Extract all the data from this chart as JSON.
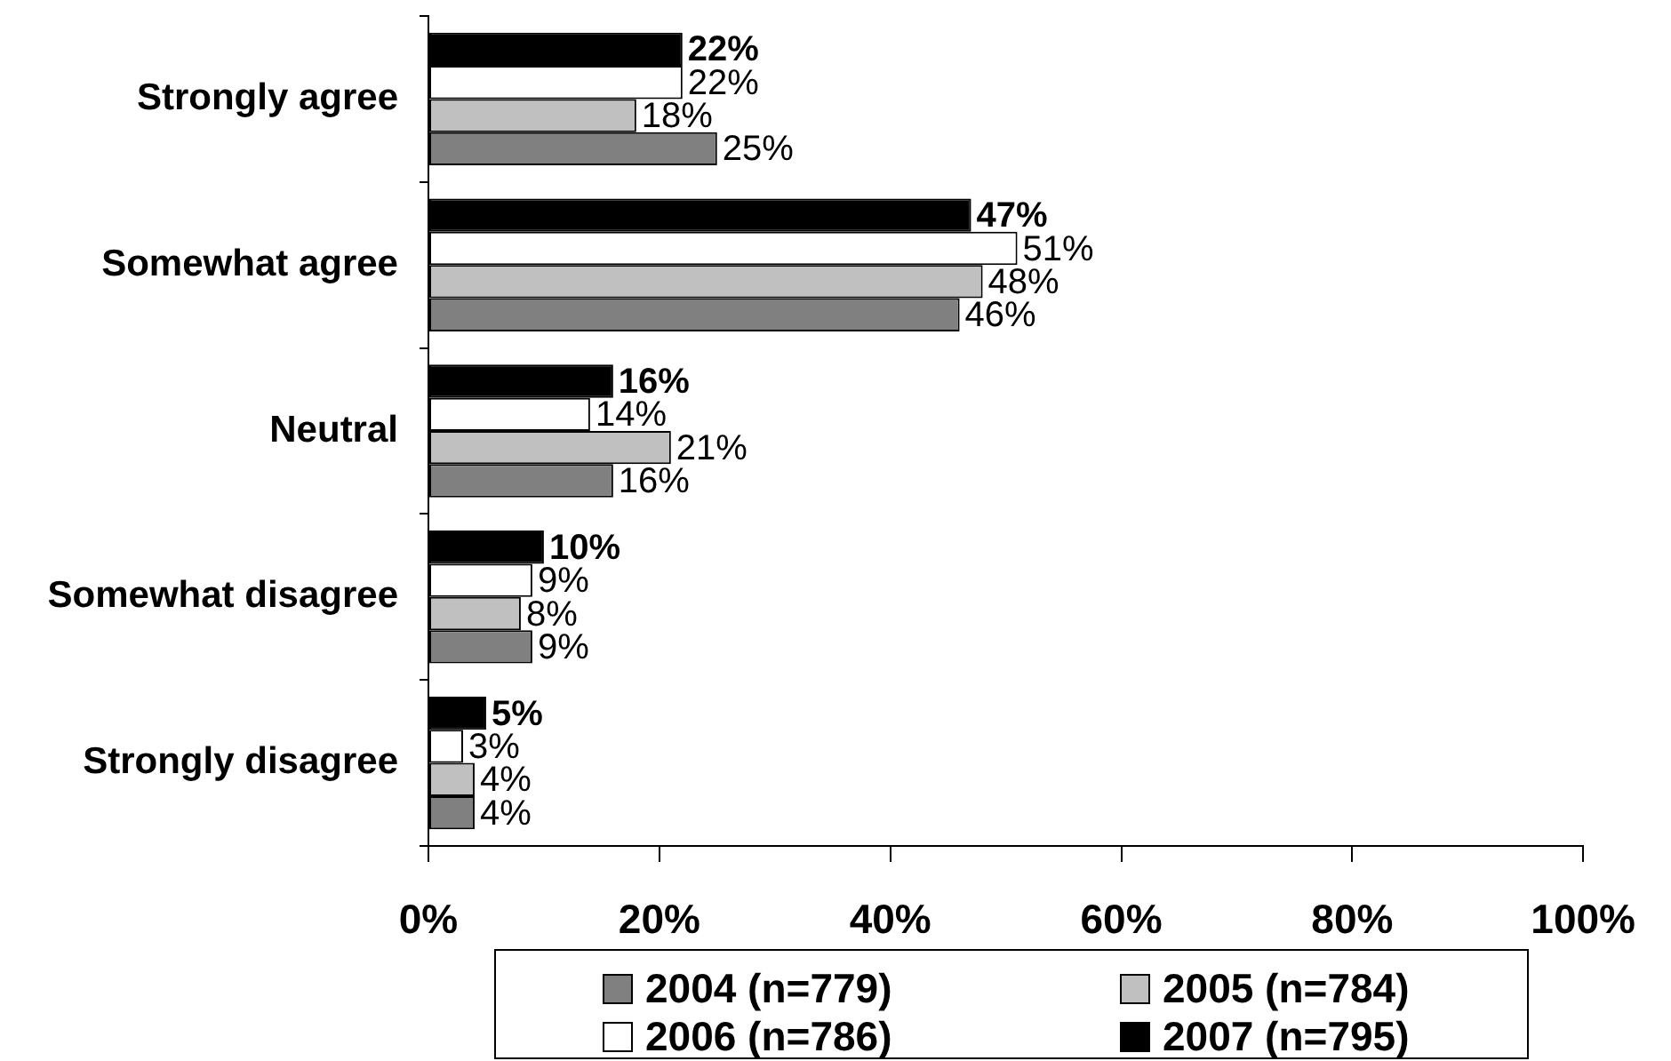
{
  "chart_data": {
    "type": "bar",
    "orientation": "horizontal",
    "categories": [
      "Strongly agree",
      "Somewhat agree",
      "Neutral",
      "Somewhat disagree",
      "Strongly disagree"
    ],
    "series": [
      {
        "name": "2004 (n=779)",
        "color": "#808080",
        "values": [
          25,
          46,
          16,
          9,
          4
        ],
        "value_labels": [
          "25%",
          "46%",
          "16%",
          "9%",
          "4%"
        ]
      },
      {
        "name": "2005 (n=784)",
        "color": "#c0c0c0",
        "values": [
          18,
          48,
          21,
          8,
          4
        ],
        "value_labels": [
          "18%",
          "48%",
          "21%",
          "8%",
          "4%"
        ]
      },
      {
        "name": "2006 (n=786)",
        "color": "#ffffff",
        "values": [
          22,
          51,
          14,
          9,
          3
        ],
        "value_labels": [
          "22%",
          "51%",
          "14%",
          "9%",
          "3%"
        ]
      },
      {
        "name": "2007 (n=795)",
        "color": "#000000",
        "values": [
          22,
          47,
          16,
          10,
          5
        ],
        "value_labels": [
          "22%",
          "47%",
          "16%",
          "10%",
          "5%"
        ]
      }
    ],
    "xlim": [
      0,
      100
    ],
    "xticks": [
      {
        "value": 0,
        "label": "0%"
      },
      {
        "value": 20,
        "label": "20%"
      },
      {
        "value": 40,
        "label": "40%"
      },
      {
        "value": 60,
        "label": "60%"
      },
      {
        "value": 80,
        "label": "80%"
      },
      {
        "value": 100,
        "label": "100%"
      }
    ],
    "grid": false,
    "legend": "bottom"
  }
}
